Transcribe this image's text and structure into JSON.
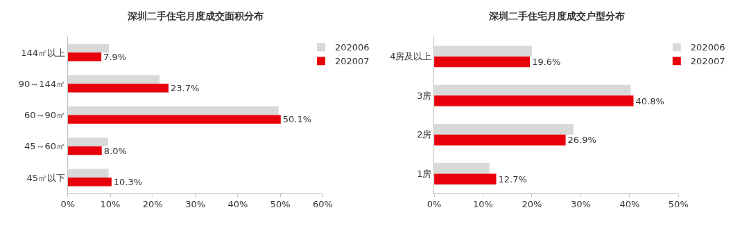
{
  "chart_data": [
    {
      "type": "bar",
      "orientation": "horizontal",
      "title": "深圳二手住宅月度成交面积分布",
      "categories": [
        "144㎡以上",
        "90～144㎡",
        "60～90㎡",
        "45～60㎡",
        "45㎡以下"
      ],
      "series": [
        {
          "name": "202006",
          "color": "#d9d9d9",
          "values": [
            9.7,
            21.6,
            49.6,
            9.5,
            9.6
          ]
        },
        {
          "name": "202007",
          "color": "#e8000b",
          "values": [
            7.9,
            23.7,
            50.1,
            8.0,
            10.3
          ],
          "value_labels": [
            "7.9%",
            "23.7%",
            "50.1%",
            "8.0%",
            "10.3%"
          ]
        }
      ],
      "xlim": [
        0,
        60
      ],
      "xticks": [
        {
          "value": 0,
          "label": "0%"
        },
        {
          "value": 10,
          "label": "10%"
        },
        {
          "value": 20,
          "label": "20%"
        },
        {
          "value": 30,
          "label": "30%"
        },
        {
          "value": 40,
          "label": "40%"
        },
        {
          "value": 50,
          "label": "50%"
        },
        {
          "value": 60,
          "label": "60%"
        }
      ],
      "legend": "top right"
    },
    {
      "type": "bar",
      "orientation": "horizontal",
      "title": "深圳二手住宅月度成交户型分布",
      "categories": [
        "4房及以上",
        "3房",
        "2房",
        "1房"
      ],
      "series": [
        {
          "name": "202006",
          "color": "#d9d9d9",
          "values": [
            20.0,
            40.2,
            28.5,
            11.3
          ]
        },
        {
          "name": "202007",
          "color": "#e8000b",
          "values": [
            19.6,
            40.8,
            26.9,
            12.7
          ],
          "value_labels": [
            "19.6%",
            "40.8%",
            "26.9%",
            "12.7%"
          ]
        }
      ],
      "xlim": [
        0,
        50
      ],
      "xticks": [
        {
          "value": 0,
          "label": "0%"
        },
        {
          "value": 10,
          "label": "10%"
        },
        {
          "value": 20,
          "label": "20%"
        },
        {
          "value": 30,
          "label": "30%"
        },
        {
          "value": 40,
          "label": "40%"
        },
        {
          "value": 50,
          "label": "50%"
        }
      ],
      "legend": "top right"
    }
  ]
}
